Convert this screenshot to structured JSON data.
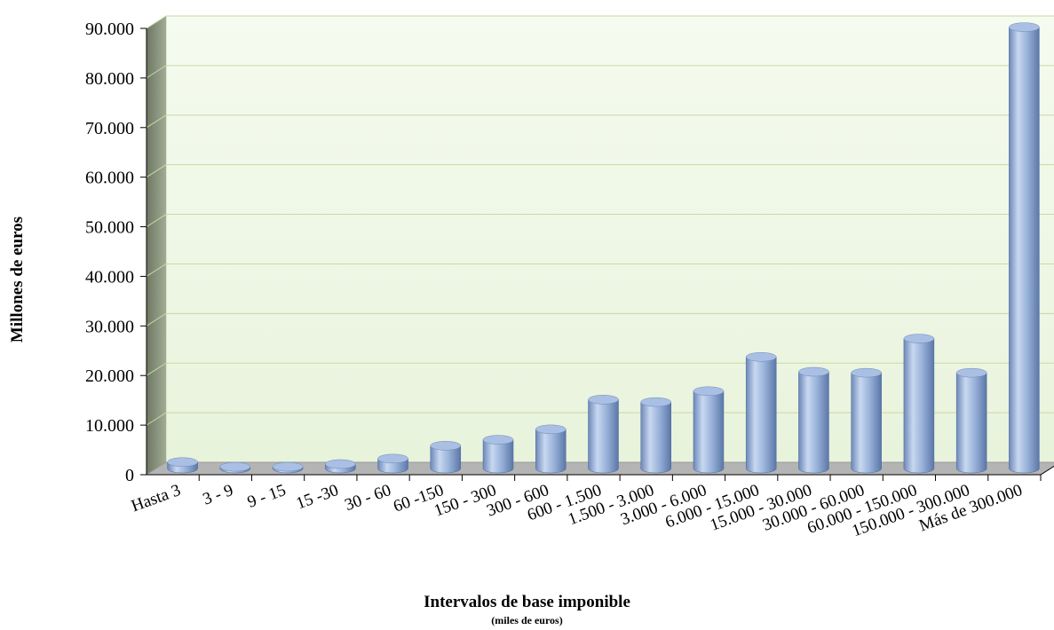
{
  "chart_data": {
    "type": "bar",
    "xlabel": "Intervalos de base imponible",
    "xlabel_sub": "(miles de euros)",
    "ylabel": "Millones de euros",
    "ylim": [
      0,
      90000
    ],
    "y_ticks": [
      {
        "value": 0,
        "label": "0"
      },
      {
        "value": 10000,
        "label": "10.000"
      },
      {
        "value": 20000,
        "label": "20.000"
      },
      {
        "value": 30000,
        "label": "30.000"
      },
      {
        "value": 40000,
        "label": "40.000"
      },
      {
        "value": 50000,
        "label": "50.000"
      },
      {
        "value": 60000,
        "label": "60.000"
      },
      {
        "value": 70000,
        "label": "70.000"
      },
      {
        "value": 80000,
        "label": "80.000"
      },
      {
        "value": 90000,
        "label": "90.000"
      }
    ],
    "categories": [
      "Hasta 3",
      "3 - 9",
      "9 - 15",
      "15 -30",
      "30 - 60",
      "60 -150",
      "150 - 300",
      "300 - 600",
      "600 - 1.500",
      "1.500 - 3.000",
      "3.000 - 6.000",
      "6.000 - 15.000",
      "15.000 - 30.000",
      "30.000 - 60.000",
      "60.000 - 150.000",
      "150.000 - 300.000",
      "Más de 300.000"
    ],
    "values": [
      1300,
      350,
      350,
      900,
      2000,
      4600,
      5800,
      7900,
      13900,
      13400,
      15600,
      22500,
      19500,
      19300,
      26200,
      19300,
      89000
    ],
    "grid": true,
    "legend": "none",
    "colors": {
      "bar_light": "#c6d6ee",
      "bar_mid": "#8fabd6",
      "bar_dark": "#4a6a9e",
      "plot_back": "#eef7e4",
      "wall_side": "#7f8a72",
      "grid": "#c9d9a6",
      "floor": "#b4b4b4"
    }
  }
}
